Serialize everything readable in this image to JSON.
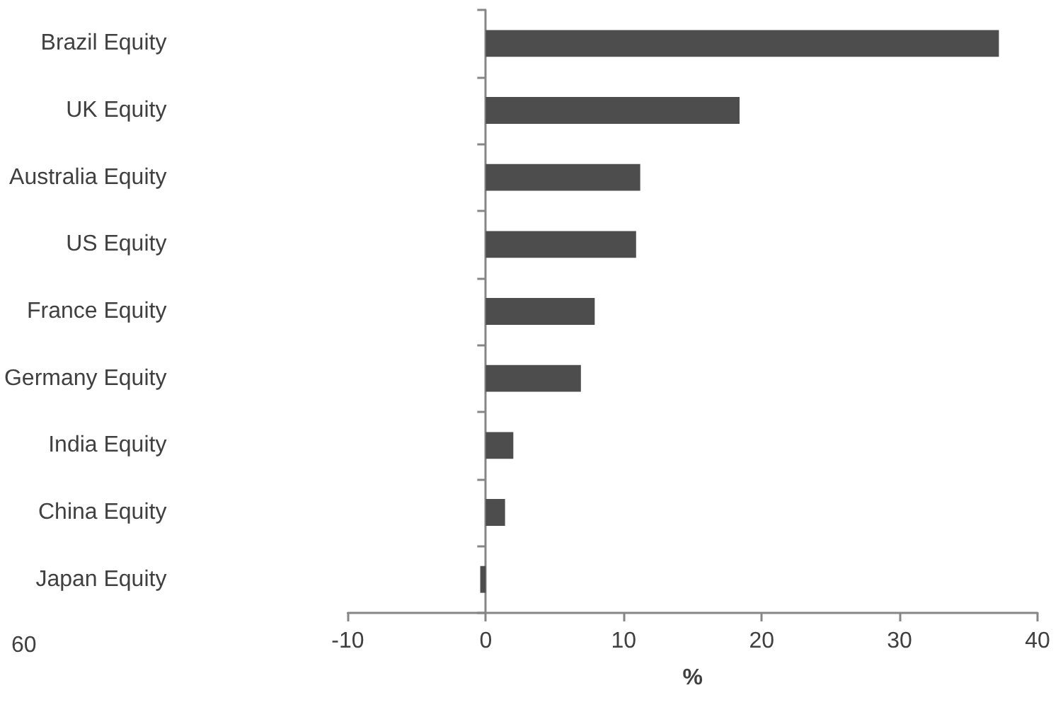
{
  "chart_data": {
    "type": "bar",
    "orientation": "horizontal",
    "xlabel": "%",
    "categories": [
      "Brazil Equity",
      "UK Equity",
      "Australia Equity",
      "US Equity",
      "France Equity",
      "Germany Equity",
      "India Equity",
      "China Equity",
      "Japan Equity"
    ],
    "values": [
      37.2,
      18.4,
      11.2,
      10.9,
      7.9,
      6.9,
      2.0,
      1.4,
      -0.4
    ],
    "color": "#4d4d4d",
    "xlim": [
      -10,
      40
    ],
    "xticks": [
      -10,
      0,
      10,
      20,
      30,
      40
    ],
    "annotations": [
      "60"
    ]
  }
}
